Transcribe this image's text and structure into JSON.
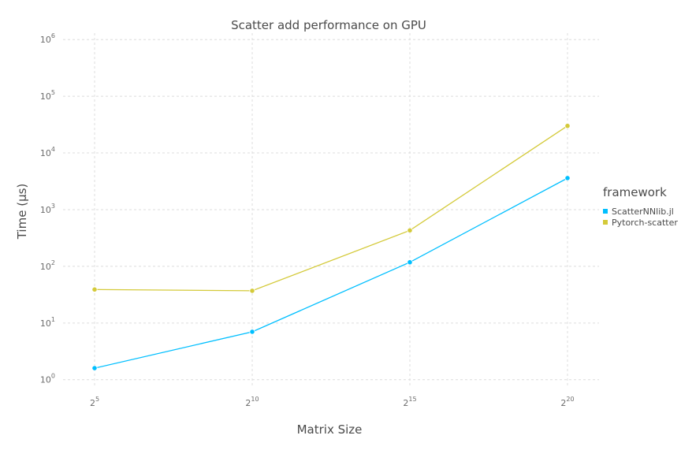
{
  "chart_data": {
    "type": "line",
    "title": "Scatter add performance on GPU",
    "xlabel": "Matrix Size",
    "ylabel": "Time (µs)",
    "x_scale": "log2",
    "y_scale": "log10",
    "x": [
      32,
      1024,
      32768,
      1048576
    ],
    "x_ticks": [
      {
        "base": "2",
        "exp": "5"
      },
      {
        "base": "2",
        "exp": "10"
      },
      {
        "base": "2",
        "exp": "15"
      },
      {
        "base": "2",
        "exp": "20"
      }
    ],
    "y_ticks": [
      {
        "base": "10",
        "exp": "0"
      },
      {
        "base": "10",
        "exp": "1"
      },
      {
        "base": "10",
        "exp": "2"
      },
      {
        "base": "10",
        "exp": "3"
      },
      {
        "base": "10",
        "exp": "4"
      },
      {
        "base": "10",
        "exp": "5"
      },
      {
        "base": "10",
        "exp": "6"
      }
    ],
    "xlim": [
      16,
      2097152
    ],
    "ylim": [
      0.72,
      1300000.0
    ],
    "grid": true,
    "legend_position": "right",
    "legend_title": "framework",
    "series": [
      {
        "name": "ScatterNNlib.jl",
        "color": "#00BFFF",
        "values": [
          1.6,
          7.0,
          118,
          3600
        ]
      },
      {
        "name": "Pytorch-scatter",
        "color": "#D4CA3A",
        "values": [
          39,
          37,
          430,
          30000
        ]
      }
    ]
  }
}
